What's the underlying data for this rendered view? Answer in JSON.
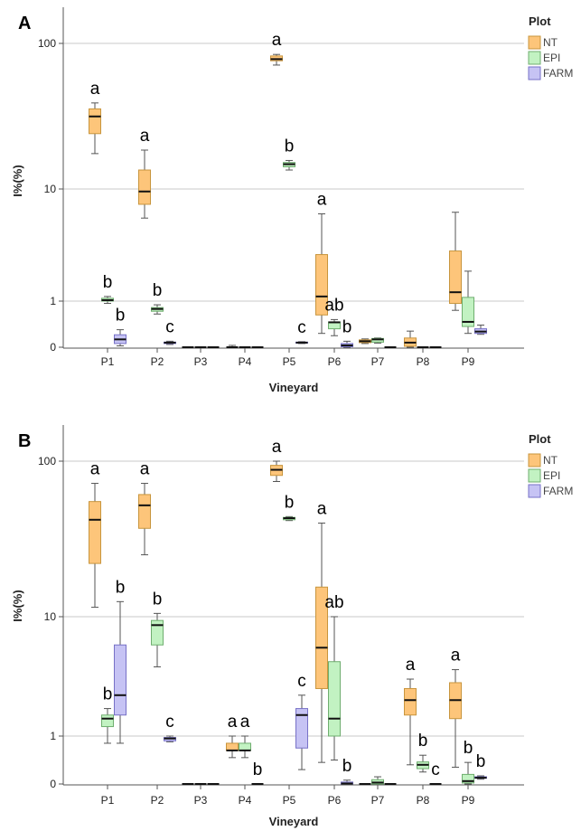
{
  "chart_data": [
    {
      "panel": "A",
      "type": "box",
      "xlabel": "Vineyard",
      "ylabel": "I%(%)",
      "yscale": "log-like (0, 1, 10, 100)",
      "yticks": [
        "0",
        "1",
        "10",
        "100"
      ],
      "categories": [
        "P1",
        "P2",
        "P3",
        "P4",
        "P5",
        "P6",
        "P7",
        "P8",
        "P9"
      ],
      "legend": {
        "title": "Plot",
        "position": "top-right"
      },
      "series": [
        {
          "name": "NT",
          "color": "#fdc57a",
          "stroke": "#c8953d",
          "boxes": [
            [
              17.5,
              24,
              31.5,
              35.5,
              39
            ],
            [
              5.5,
              7.3,
              9.5,
              13.5,
              18.5
            ],
            [
              0,
              0,
              0,
              0,
              0
            ],
            [
              0,
              0,
              0,
              0,
              0.04
            ],
            [
              71,
              76,
              78,
              82,
              84
            ],
            [
              0.3,
              0.7,
              1.1,
              2.6,
              6
            ],
            [
              0.08,
              0.1,
              0.13,
              0.16,
              0.18
            ],
            [
              0,
              0.02,
              0.1,
              0.2,
              0.35
            ],
            [
              0.8,
              0.95,
              1.2,
              2.8,
              6.2
            ]
          ],
          "letters": [
            "a",
            "a",
            "",
            "",
            "a",
            "a",
            "",
            "",
            ""
          ]
        },
        {
          "name": "EPI",
          "color": "#c2f2c2",
          "stroke": "#6fae6f",
          "boxes": [
            [
              0.95,
              1.0,
              1.02,
              1.06,
              1.1
            ],
            [
              0.72,
              0.78,
              0.83,
              0.86,
              0.92
            ],
            [
              0,
              0,
              0,
              0,
              0
            ],
            [
              0,
              0,
              0,
              0,
              0
            ],
            [
              13.5,
              14.2,
              14.8,
              15.2,
              15.7
            ],
            [
              0.25,
              0.4,
              0.54,
              0.55,
              0.6
            ],
            [
              0.09,
              0.11,
              0.17,
              0.19,
              0.2
            ],
            [
              0,
              0,
              0,
              0,
              0
            ],
            [
              0.3,
              0.45,
              0.55,
              1.08,
              1.85
            ]
          ],
          "letters": [
            "b",
            "b",
            "",
            "",
            "b",
            "ab",
            "",
            "",
            ""
          ]
        },
        {
          "name": "FARM",
          "color": "#c6c3f4",
          "stroke": "#7771c7",
          "boxes": [
            [
              0.03,
              0.08,
              0.17,
              0.27,
              0.38
            ],
            [
              0.06,
              0.08,
              0.1,
              0.11,
              0.13
            ],
            [
              0,
              0,
              0,
              0,
              0
            ],
            [
              0,
              0,
              0,
              0,
              0
            ],
            [
              0.08,
              0.09,
              0.1,
              0.11,
              0.12
            ],
            [
              0,
              0.01,
              0.04,
              0.08,
              0.13
            ],
            [
              0,
              0,
              0,
              0,
              0
            ],
            [
              0,
              0,
              0,
              0,
              0
            ],
            [
              0.28,
              0.3,
              0.34,
              0.4,
              0.48
            ]
          ],
          "letters": [
            "b",
            "c",
            "",
            "",
            "c",
            "b",
            "",
            "",
            ""
          ]
        }
      ]
    },
    {
      "panel": "B",
      "type": "box",
      "xlabel": "Vineyard",
      "ylabel": "I%(%)",
      "yscale": "log-like (0, 1, 10, 100)",
      "yticks": [
        "0",
        "1",
        "10",
        "100"
      ],
      "categories": [
        "P1",
        "P2",
        "P3",
        "P4",
        "P5",
        "P6",
        "P7",
        "P8",
        "P9"
      ],
      "legend": {
        "title": "Plot",
        "position": "top-right"
      },
      "series": [
        {
          "name": "NT",
          "color": "#fdc57a",
          "stroke": "#c8953d",
          "boxes": [
            [
              11.5,
              22,
              42,
              55,
              72
            ],
            [
              25,
              37,
              52,
              61,
              72
            ],
            [
              0,
              0,
              0,
              0,
              0
            ],
            [
              0.55,
              0.7,
              0.7,
              0.85,
              1.0
            ],
            [
              74,
              81,
              88,
              94,
              100
            ],
            [
              0.45,
              2.5,
              5.5,
              15.5,
              40
            ],
            [
              0,
              0,
              0,
              0,
              0
            ],
            [
              0.4,
              1.5,
              2.0,
              2.5,
              3.0
            ],
            [
              0.35,
              1.4,
              2.0,
              2.8,
              3.6
            ]
          ],
          "letters": [
            "a",
            "a",
            "",
            "a",
            "a",
            "a",
            "",
            "a",
            "a"
          ]
        },
        {
          "name": "EPI",
          "color": "#c2f2c2",
          "stroke": "#6fae6f",
          "boxes": [
            [
              0.85,
              1.2,
              1.4,
              1.5,
              1.7
            ],
            [
              3.8,
              5.8,
              8.5,
              9.3,
              10.5
            ],
            [
              0,
              0,
              0,
              0,
              0
            ],
            [
              0.55,
              0.7,
              0.7,
              0.85,
              1.0
            ],
            [
              41.5,
              42,
              43,
              43.5,
              44
            ],
            [
              0.5,
              1.0,
              1.4,
              4.2,
              10
            ],
            [
              0,
              0,
              0.03,
              0.09,
              0.15
            ],
            [
              0.25,
              0.32,
              0.4,
              0.46,
              0.6
            ],
            [
              0,
              0.02,
              0.06,
              0.2,
              0.45
            ]
          ],
          "letters": [
            "b",
            "b",
            "",
            "a",
            "b",
            "ab",
            "",
            "b",
            "b"
          ]
        },
        {
          "name": "FARM",
          "color": "#c6c3f4",
          "stroke": "#7771c7",
          "boxes": [
            [
              0.85,
              1.5,
              2.2,
              5.8,
              12.5
            ],
            [
              0.88,
              0.9,
              0.95,
              0.97,
              1.0
            ],
            [
              0,
              0,
              0,
              0,
              0
            ],
            [
              0,
              0,
              0,
              0,
              0
            ],
            [
              0.3,
              0.75,
              1.5,
              1.7,
              2.2
            ],
            [
              0,
              0,
              0.01,
              0.04,
              0.08
            ],
            [
              0,
              0,
              0,
              0,
              0
            ],
            [
              0,
              0,
              0,
              0,
              0
            ],
            [
              0.1,
              0.12,
              0.13,
              0.15,
              0.17
            ]
          ],
          "letters": [
            "b",
            "c",
            "",
            "b",
            "c",
            "b",
            "",
            "c",
            "b"
          ]
        }
      ]
    }
  ]
}
